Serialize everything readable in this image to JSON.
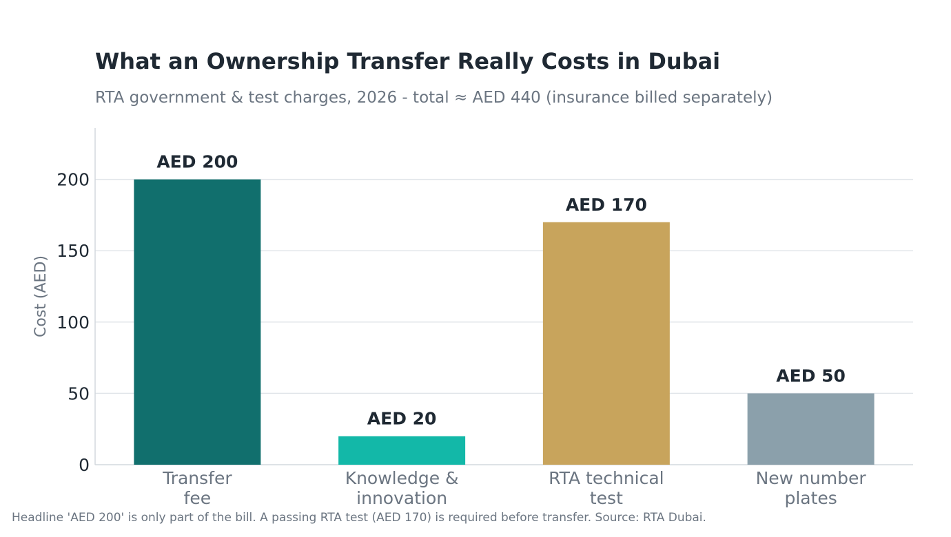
{
  "chart_data": {
    "type": "bar",
    "title": "What an Ownership Transfer Really Costs in Dubai",
    "subtitle": "RTA government & test charges, 2026  -  total ≈ AED 440 (insurance billed separately)",
    "ylabel": "Cost (AED)",
    "xlabel": "",
    "categories": [
      [
        "Transfer",
        "fee"
      ],
      [
        "Knowledge &",
        "innovation"
      ],
      [
        "RTA technical",
        "test"
      ],
      [
        "New number",
        "plates"
      ]
    ],
    "values": [
      200,
      20,
      170,
      50
    ],
    "data_labels": [
      "AED 200",
      "AED 20",
      "AED 170",
      "AED 50"
    ],
    "colors": [
      "#116f6d",
      "#13b8a8",
      "#c8a45c",
      "#8ba0ab"
    ],
    "yticks": [
      0,
      50,
      100,
      150,
      200
    ],
    "ylim": [
      0,
      236
    ],
    "grid": true,
    "footnote": "Headline 'AED 200' is only part of the bill. A passing RTA test (AED 170) is required before transfer.   Source: RTA Dubai."
  }
}
